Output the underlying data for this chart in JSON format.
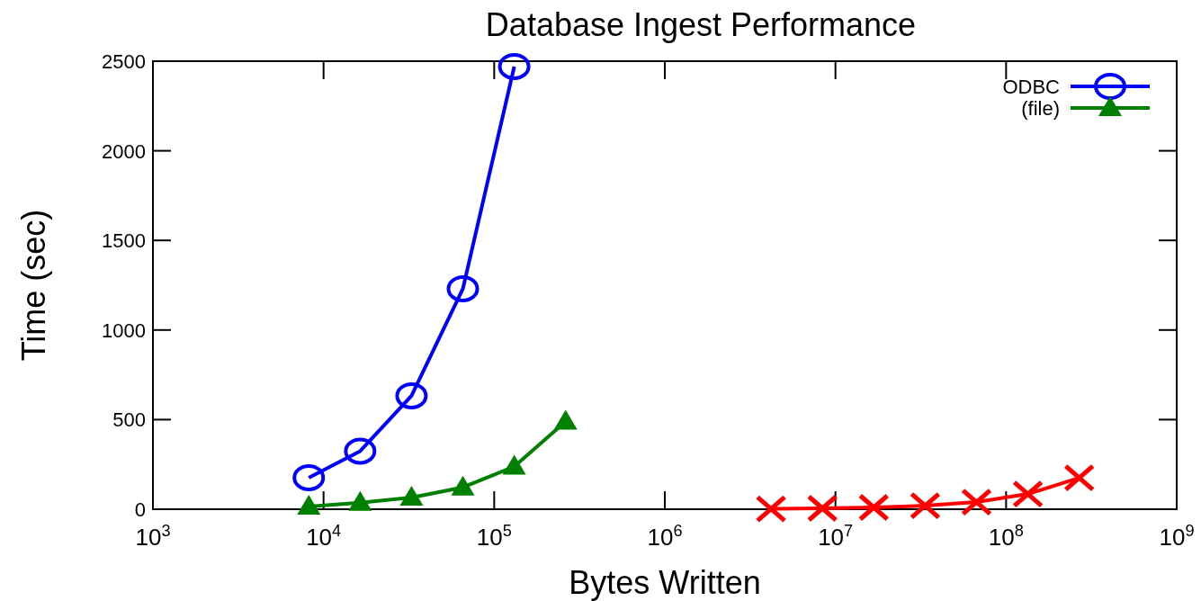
{
  "chart_data": {
    "type": "line",
    "title": "Database Ingest Performance",
    "xlabel": "Bytes Written",
    "ylabel": "Time (sec)",
    "log": "x",
    "xlim": [
      1000,
      1000000000
    ],
    "xticks": [
      {
        "value": 1000,
        "label": "10$^{3}$"
      },
      {
        "value": 10000,
        "label": "10$^{4}$"
      },
      {
        "value": 100000,
        "label": "10$^{5}$"
      },
      {
        "value": 1000000,
        "label": "10$^{6}$"
      },
      {
        "value": 10000000,
        "label": "10$^{7}$"
      },
      {
        "value": 100000000,
        "label": "10$^{8}$"
      },
      {
        "value": 1000000000,
        "label": "10$^{9}$"
      }
    ],
    "ylim": [
      0,
      2500
    ],
    "yticks": [
      0,
      500,
      1000,
      1500,
      2000,
      2500
    ],
    "legend": "top right",
    "grid": false,
    "series": [
      {
        "name": "ODBC",
        "color": "#0000ff",
        "marker": "circle",
        "x": [
          8192,
          16384,
          32768,
          65536,
          131072
        ],
        "values": [
          176,
          324,
          633,
          1230,
          2470
        ]
      },
      {
        "name": "(file)",
        "color": "#008000",
        "marker": "triangle",
        "x": [
          8192,
          16384,
          32768,
          65536,
          131072,
          262144
        ],
        "values": [
          15,
          36,
          65,
          122,
          238,
          490
        ]
      },
      {
        "color": "#ff0000",
        "marker": "cross",
        "x": [
          4194304,
          8388608,
          16777216,
          33554432,
          67108864,
          134217728,
          268435456
        ],
        "values": [
          2,
          5,
          10,
          20,
          40,
          85,
          175
        ]
      }
    ]
  }
}
